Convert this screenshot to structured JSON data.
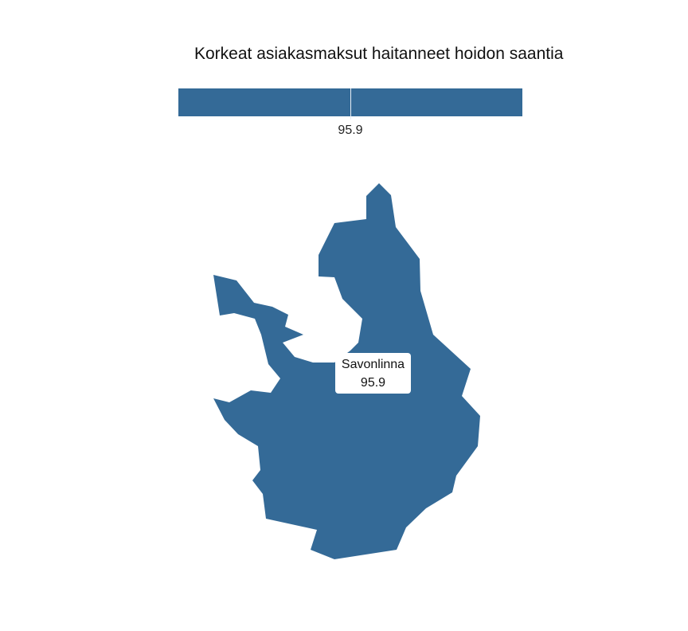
{
  "title": "Korkeat asiakasmaksut haitanneet hoidon saantia",
  "legend": {
    "value_label": "95.9",
    "color": "#346a97"
  },
  "region": {
    "name": "Savonlinna",
    "value_label": "95.9",
    "fill": "#346a97"
  }
}
